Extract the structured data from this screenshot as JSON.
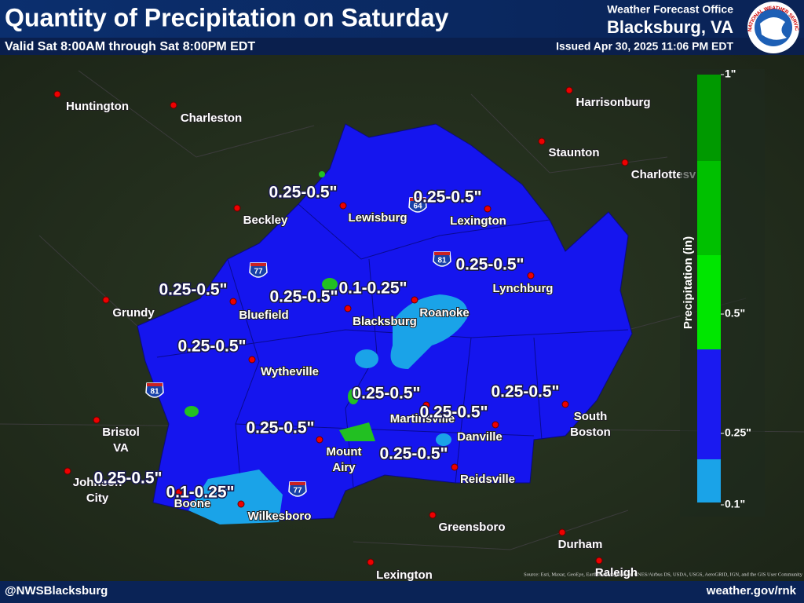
{
  "header": {
    "title": "Quantity of Precipitation on Saturday",
    "subtitle": "Valid Sat 8:00AM through Sat 8:00PM EDT",
    "office": "Weather Forecast Office",
    "office_name": "Blacksburg, VA",
    "issued": "Issued Apr 30, 2025 11:06 PM EDT",
    "logo_text": "NATIONAL WEATHER SERVICE"
  },
  "legend": {
    "title": "Precipitation (in)",
    "ticks": [
      "1\"",
      "0.5\"",
      "0.25\"",
      "0.1\""
    ]
  },
  "cities": [
    "Huntington",
    "Charleston",
    "Harrisonburg",
    "Staunton",
    "Charlottesv",
    "Beckley",
    "Lewisburg",
    "Lexington",
    "Lynchburg",
    "Grundy",
    "Bluefield",
    "Blacksburg",
    "Roanoke",
    "Wytheville",
    "Bristol VA",
    "Martinsville",
    "Danville",
    "South Boston",
    "Mount Airy",
    "Reidsville",
    "Johnson City",
    "Boone",
    "Wilkesboro",
    "Greensboro",
    "Durham",
    "Lexington",
    "Raleigh"
  ],
  "amounts": [
    "0.25-0.5\"",
    "0.25-0.5\"",
    "0.25-0.5\"",
    "0.25-0.5\"",
    "0.25-0.5\"",
    "0.1-0.25\"",
    "0.25-0.5\"",
    "0.25-0.5\"",
    "0.25-0.5\"",
    "0.25-0.5\"",
    "0.25-0.5\"",
    "0.25-0.5\"",
    "0.25-0.5\"",
    "0.1-0.25\""
  ],
  "shields": [
    "64",
    "81",
    "77",
    "81",
    "77"
  ],
  "footer": {
    "left": "@NWSBlacksburg",
    "right": "weather.gov/rnk",
    "source": "Source: Esri, Maxar, GeoEye, Earthstar Geographics, CNES/Airbus DS, USDA, USGS, AeroGRID, IGN, and the GIS User Community"
  }
}
